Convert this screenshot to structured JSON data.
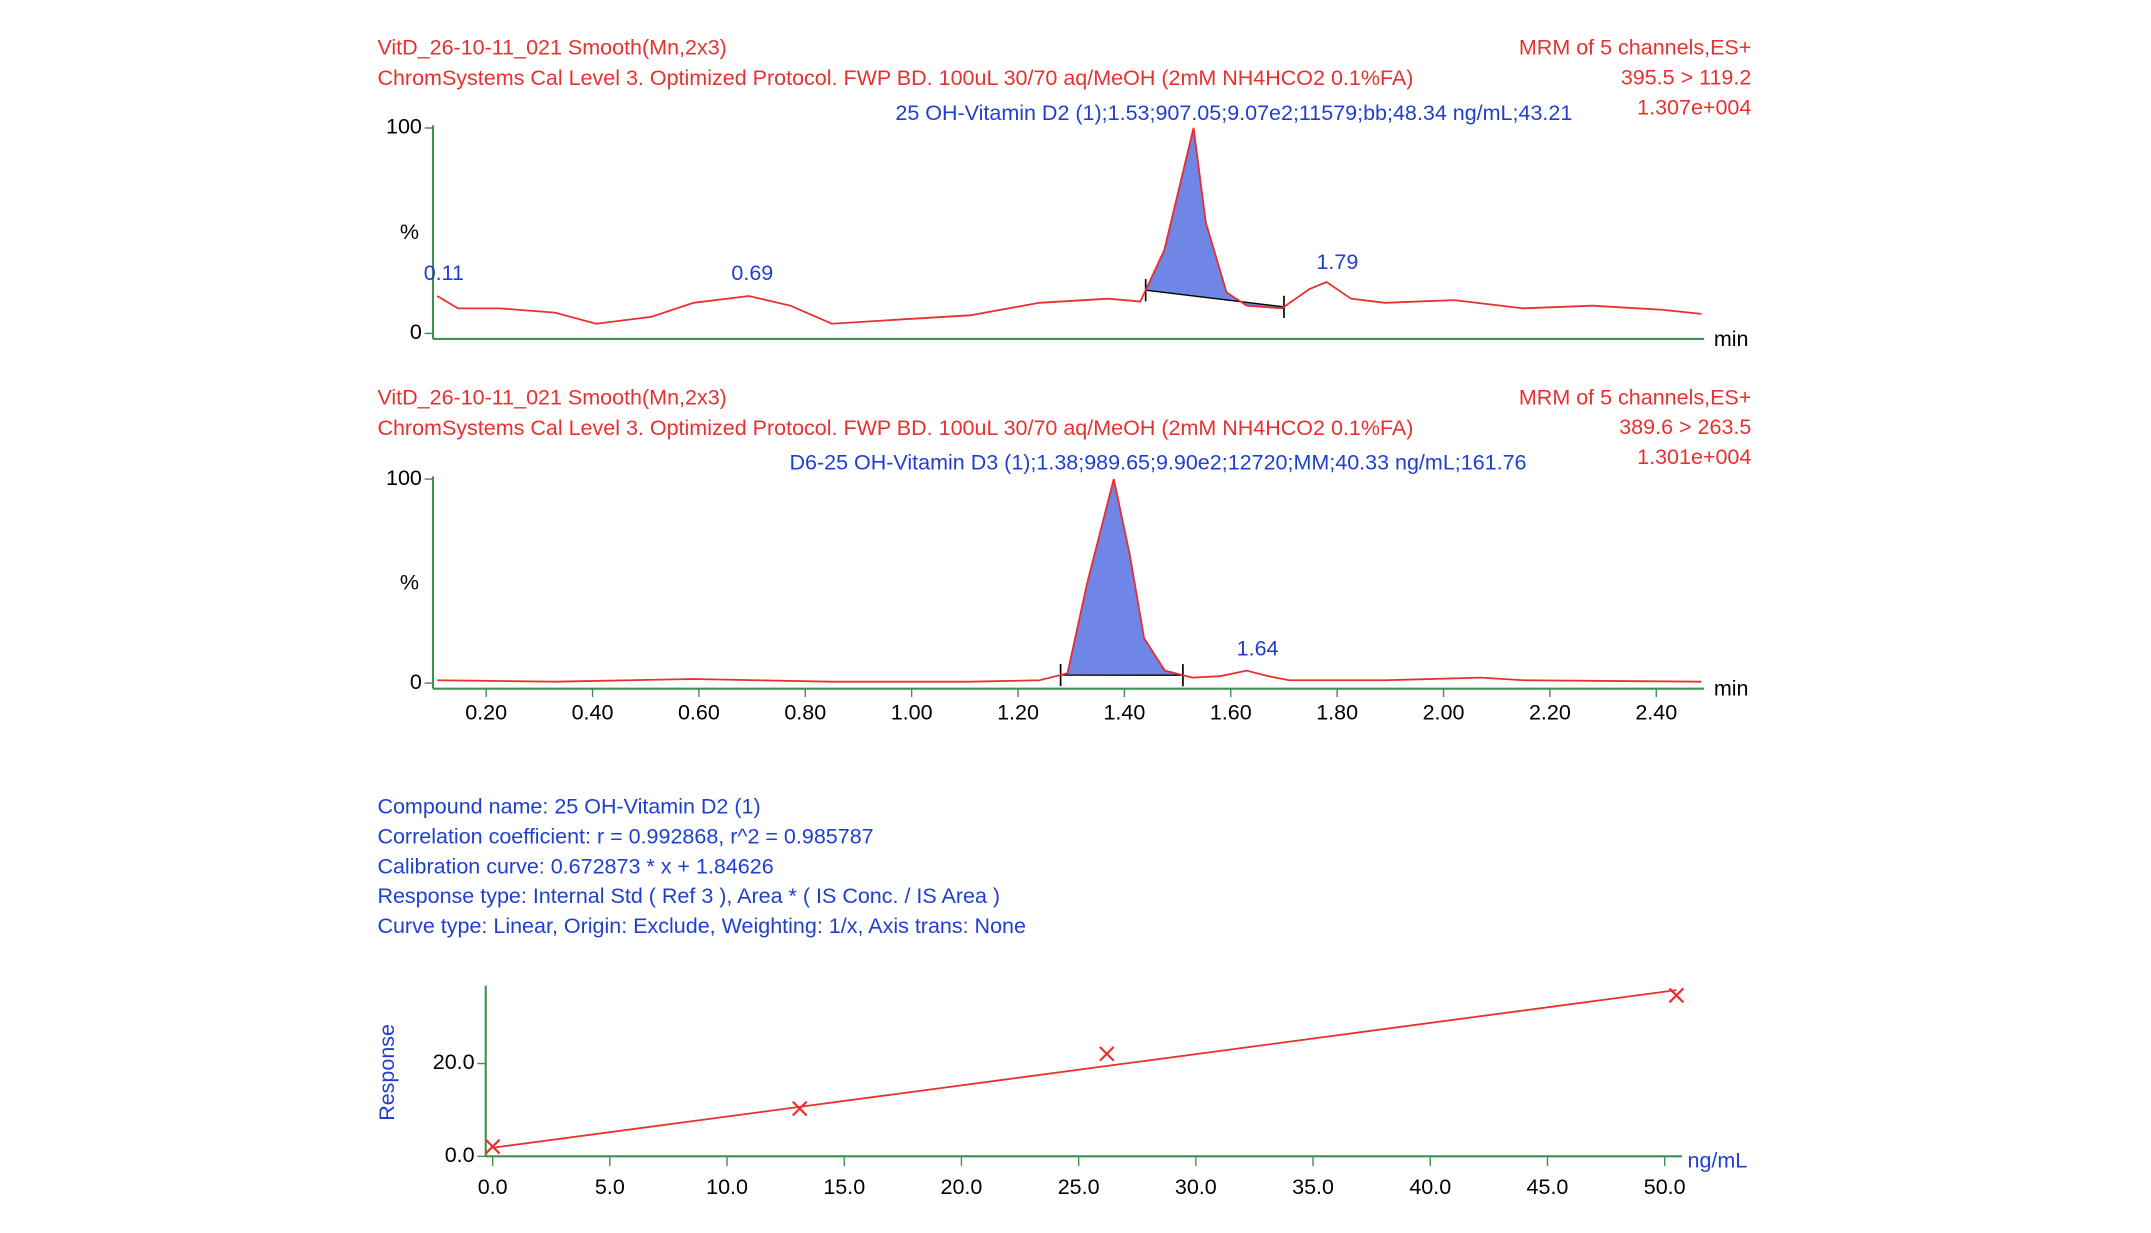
{
  "chart_data": [
    {
      "type": "line",
      "title": "VitD_26-10-11_021 Smooth(Mn,2x3)",
      "subtitle": "ChromSystems Cal Level 3. Optimized Protocol. FWP BD. 100uL 30/70 aq/MeOH (2mM NH4HCO2 0.1%FA)",
      "info": [
        "MRM of 5 channels,ES+",
        "395.5 > 119.2",
        "1.307e+004"
      ],
      "annotation": "25 OH-Vitamin D2 (1);1.53;907.05;9.07e2;11579;bb;48.34 ng/mL;43.21",
      "ylabel": "%",
      "xlabel": "min",
      "color": "#e8312f",
      "fill": "#6f86e6",
      "x": [
        0.108,
        0.147,
        0.225,
        0.329,
        0.407,
        0.511,
        0.59,
        0.694,
        0.772,
        0.85,
        0.98,
        1.11,
        1.24,
        1.37,
        1.43,
        1.475,
        1.53,
        1.553,
        1.592,
        1.63,
        1.696,
        1.748,
        1.78,
        1.826,
        1.89,
        2.02,
        2.15,
        2.28,
        2.41,
        2.485
      ],
      "values": [
        18.2,
        12.2,
        12.2,
        10.1,
        4.7,
        8.1,
        14.9,
        18.2,
        13.5,
        4.7,
        6.8,
        8.8,
        14.9,
        16.9,
        15.5,
        40.5,
        100,
        54,
        20,
        13.5,
        12.2,
        21.6,
        25,
        16.9,
        14.9,
        16.2,
        12.2,
        13.5,
        11.5,
        9.5
      ],
      "peak_range": [
        1.44,
        1.7
      ],
      "peak_labels": [
        0.11,
        0.69,
        1.79
      ],
      "xlim": [
        0.1,
        2.49
      ],
      "ylim": [
        0,
        100
      ],
      "yticks": [
        0,
        100
      ]
    },
    {
      "type": "line",
      "title": "VitD_26-10-11_021 Smooth(Mn,2x3)",
      "subtitle": "ChromSystems Cal Level 3. Optimized Protocol. FWP BD. 100uL 30/70 aq/MeOH (2mM NH4HCO2 0.1%FA)",
      "info": [
        "MRM of 5 channels,ES+",
        "389.6 > 263.5",
        "1.301e+004"
      ],
      "annotation": "D6-25 OH-Vitamin D3 (1);1.38;989.65;9.90e2;12720;MM;40.33 ng/mL;161.76",
      "ylabel": "%",
      "xlabel": "min",
      "color": "#e8312f",
      "fill": "#6f86e6",
      "x": [
        0.108,
        0.329,
        0.59,
        0.85,
        1.11,
        1.24,
        1.293,
        1.33,
        1.38,
        1.41,
        1.437,
        1.476,
        1.528,
        1.58,
        1.63,
        1.67,
        1.71,
        1.89,
        2.07,
        2.15,
        2.485
      ],
      "values": [
        1.4,
        0.7,
        2.0,
        0.7,
        0.7,
        1.4,
        4.8,
        49,
        100,
        63,
        22,
        6.1,
        2.7,
        3.4,
        6.1,
        3.4,
        1.4,
        1.4,
        2.7,
        1.4,
        0.7
      ],
      "peak_range": [
        1.28,
        1.51
      ],
      "peak_labels": [
        1.64
      ],
      "xlim": [
        0.1,
        2.49
      ],
      "ylim": [
        0,
        100
      ],
      "yticks": [
        0,
        100
      ],
      "xticks": [
        {
          "value": 0.2,
          "label": "0.20"
        },
        {
          "value": 0.4,
          "label": "0.40"
        },
        {
          "value": 0.6,
          "label": "0.60"
        },
        {
          "value": 0.8,
          "label": "0.80"
        },
        {
          "value": 1,
          "label": "1.00"
        },
        {
          "value": 1.2,
          "label": "1.20"
        },
        {
          "value": 1.4,
          "label": "1.40"
        },
        {
          "value": 1.6,
          "label": "1.60"
        },
        {
          "value": 1.8,
          "label": "1.80"
        },
        {
          "value": 2,
          "label": "2.00"
        },
        {
          "value": 2.2,
          "label": "2.20"
        },
        {
          "value": 2.4,
          "label": "2.40"
        }
      ]
    },
    {
      "type": "scatter",
      "info": [
        "Compound name: 25 OH-Vitamin D2 (1)",
        "Correlation coefficient: r = 0.992868, r^2 = 0.985787",
        "Calibration curve: 0.672873 * x + 1.84626",
        "Response type: Internal Std ( Ref 3 ), Area * ( IS Conc. / IS Area )",
        "Curve type: Linear, Origin: Exclude, Weighting: 1/x, Axis trans: None"
      ],
      "ylabel": "Response",
      "xlabel": "ng/mL",
      "color": "#e8312f",
      "x": [
        0.0,
        13.1,
        26.2,
        50.5
      ],
      "values": [
        2.1,
        10.3,
        22.1,
        34.7
      ],
      "line": {
        "x": [
          0,
          50.5
        ],
        "values": [
          1.85,
          35.83
        ]
      },
      "xlim": [
        0,
        50.5
      ],
      "ylim": [
        0,
        36.2
      ],
      "xticks": [
        {
          "value": 0,
          "label": "0.0"
        },
        {
          "value": 5,
          "label": "5.0"
        },
        {
          "value": 10,
          "label": "10.0"
        },
        {
          "value": 15,
          "label": "15.0"
        },
        {
          "value": 20,
          "label": "20.0"
        },
        {
          "value": 25,
          "label": "25.0"
        },
        {
          "value": 30,
          "label": "30.0"
        },
        {
          "value": 35,
          "label": "35.0"
        },
        {
          "value": 40,
          "label": "40.0"
        },
        {
          "value": 45,
          "label": "45.0"
        },
        {
          "value": 50,
          "label": "50.0"
        }
      ],
      "yticks": [
        {
          "value": 0,
          "label": "0.0"
        },
        {
          "value": 20,
          "label": "20.0"
        }
      ]
    }
  ]
}
